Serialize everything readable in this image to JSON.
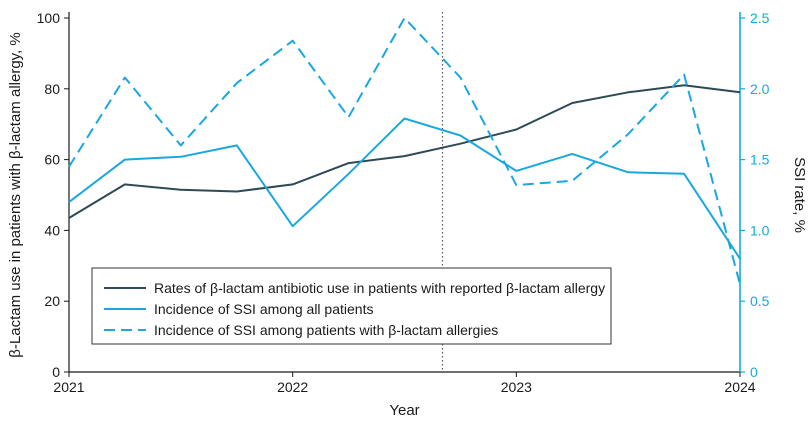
{
  "chart_data": {
    "type": "line",
    "x": [
      2021,
      2021.25,
      2021.5,
      2021.75,
      2022,
      2022.25,
      2022.5,
      2022.75,
      2023,
      2023.25,
      2023.5,
      2023.75,
      2024
    ],
    "x_ticks": [
      {
        "value": 2021,
        "label": "2021"
      },
      {
        "value": 2022,
        "label": "2022"
      },
      {
        "value": 2023,
        "label": "2023"
      },
      {
        "value": 2024,
        "label": "2024"
      }
    ],
    "xlabel": "Year",
    "xlim": [
      2021,
      2024
    ],
    "ylabel_left": "β-Lactam use in patients with β-lactam allergy, %",
    "ylim_left": [
      0,
      100
    ],
    "yticks_left": [
      0,
      20,
      40,
      60,
      80,
      100
    ],
    "ylabel_right": "SSI rate, %",
    "ylim_right": [
      0,
      2.5
    ],
    "yticks_right": [
      "0",
      "0.5",
      "1.0",
      "1.5",
      "2.0",
      "2.5"
    ],
    "yticks_right_values": [
      0,
      0.5,
      1.0,
      1.5,
      2.0,
      2.5
    ],
    "vertical_marker_x": 2022.67,
    "colors": {
      "dark": "#2e4a57",
      "light": "#19a8dd",
      "axis_right": "#19a8dd",
      "marker": "#555555"
    },
    "series": [
      {
        "name": "Rates of β-lactam antibiotic use in patients with reported β-lactam allergy",
        "axis": "left",
        "style": "solid",
        "color_key": "dark",
        "values": [
          43.5,
          53,
          51.5,
          51,
          53,
          59,
          61,
          64.5,
          68.5,
          76,
          79,
          81,
          79
        ]
      },
      {
        "name": "Incidence of SSI among all patients",
        "axis": "right",
        "style": "solid",
        "color_key": "light",
        "values": [
          1.2,
          1.5,
          1.52,
          1.6,
          1.03,
          1.4,
          1.79,
          1.67,
          1.42,
          1.54,
          1.41,
          1.4,
          0.8
        ]
      },
      {
        "name": "Incidence of SSI among patients with β-lactam allergies",
        "axis": "right",
        "style": "dashed",
        "color_key": "light",
        "values": [
          1.45,
          2.08,
          1.6,
          2.04,
          2.34,
          1.8,
          2.5,
          2.08,
          1.32,
          1.35,
          1.68,
          2.1,
          0.62
        ]
      }
    ],
    "legend_position": "bottom-left"
  }
}
